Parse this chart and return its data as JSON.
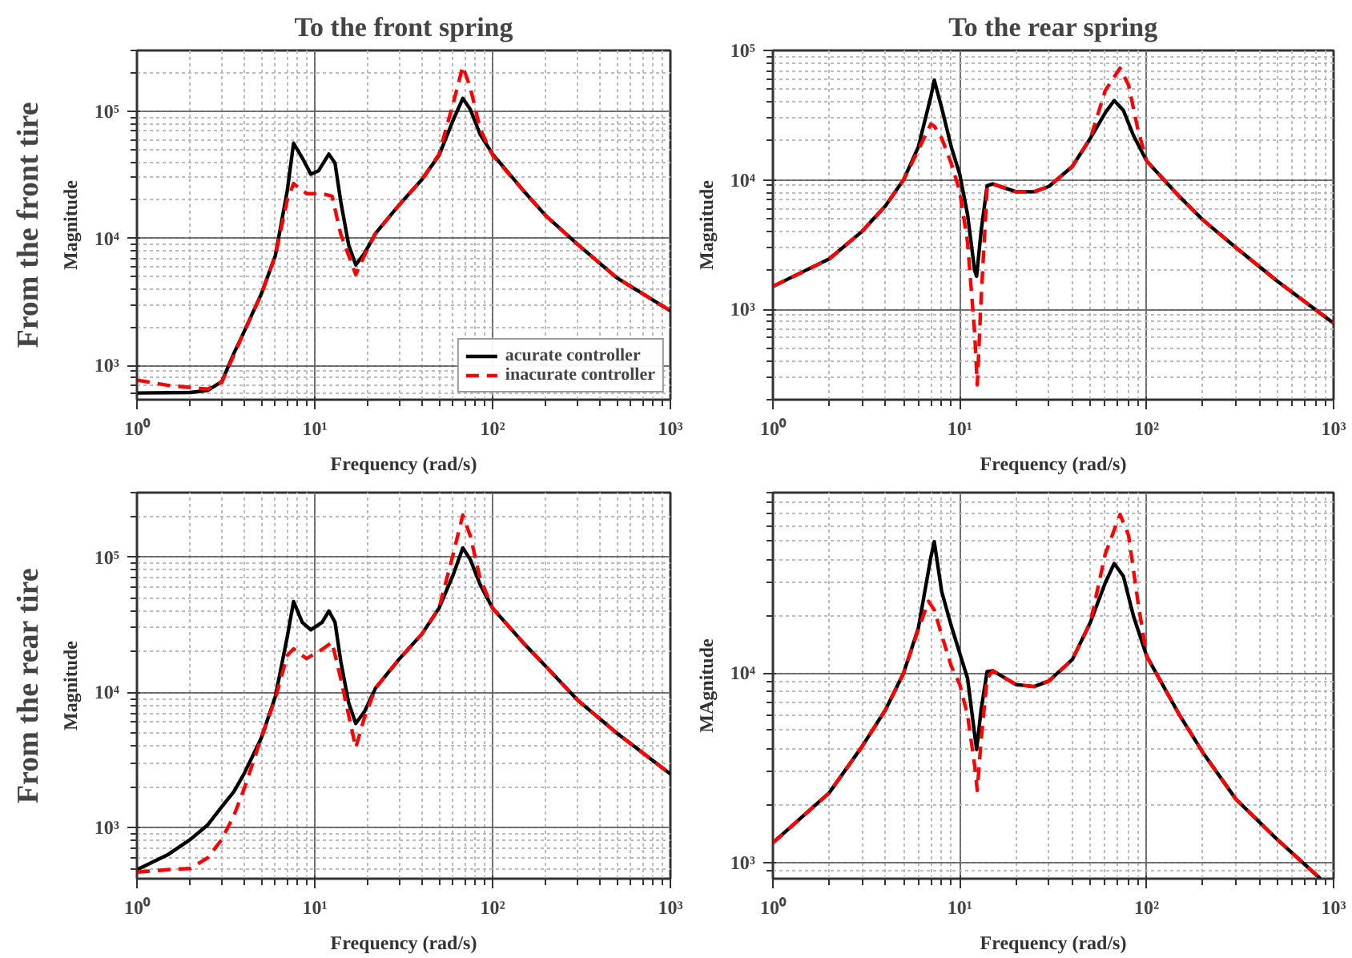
{
  "chart_data": [
    {
      "type": "line",
      "title": "To the front spring",
      "ylabel": "Magnitude",
      "xlabel": "Frequency (rad/s)",
      "annotations": [
        "From the front tire"
      ],
      "log": "xy",
      "grid": true,
      "legend": "bottom right",
      "xlim": [
        1,
        1000
      ],
      "ylim": [
        540,
        300000
      ],
      "xticks": [
        {
          "value": 1,
          "label": "10⁰"
        },
        {
          "value": 10,
          "label": "10¹"
        },
        {
          "value": 100,
          "label": "10²"
        },
        {
          "value": 1000,
          "label": "10³"
        }
      ],
      "yticks": [
        {
          "value": 1000,
          "label": "10³"
        },
        {
          "value": 10000,
          "label": "10⁴"
        },
        {
          "value": 100000,
          "label": "10⁵"
        }
      ],
      "series": [
        {
          "name": "acurate controller",
          "color": "#000000",
          "line_style": "solid",
          "x": [
            1,
            2,
            2.5,
            3,
            3.5,
            4,
            5,
            6,
            7,
            7.6,
            8.5,
            9.5,
            10.5,
            12,
            13,
            14,
            15.5,
            17,
            19,
            22,
            30,
            40,
            50,
            60,
            68,
            75,
            85,
            100,
            150,
            200,
            300,
            500,
            1000
          ],
          "values": [
            610,
            615,
            640,
            750,
            1240,
            1840,
            3650,
            7300,
            23600,
            56000,
            43000,
            32000,
            34000,
            46000,
            39000,
            19500,
            8900,
            6200,
            7600,
            11000,
            18500,
            29000,
            45000,
            85000,
            126000,
            103000,
            66000,
            46000,
            23500,
            15000,
            9000,
            4900,
            2700
          ]
        },
        {
          "name": "inacurate controller",
          "color": "#ff0000",
          "line_style": "dashed",
          "x": [
            1,
            1.5,
            2.5,
            3,
            3.5,
            4,
            5,
            6,
            7,
            7.6,
            9,
            11,
            12.5,
            14,
            17,
            19,
            22,
            30,
            40,
            50,
            60,
            68,
            75,
            85,
            100,
            150,
            200,
            300,
            500,
            1000
          ],
          "values": [
            770,
            700,
            655,
            740,
            1200,
            1840,
            3650,
            7300,
            20000,
            27000,
            22500,
            22500,
            21500,
            10800,
            5200,
            7300,
            11000,
            18500,
            29000,
            46000,
            115000,
            225000,
            152000,
            73000,
            45000,
            23500,
            15000,
            9000,
            4900,
            2700
          ]
        }
      ]
    },
    {
      "type": "line",
      "title": "To the rear spring",
      "ylabel": "Magnitude",
      "xlabel": "Frequency (rad/s)",
      "log": "xy",
      "grid": true,
      "xlim": [
        1,
        1000
      ],
      "ylim": [
        200,
        100000
      ],
      "xticks": [
        {
          "value": 1,
          "label": "10⁰"
        },
        {
          "value": 10,
          "label": "10¹"
        },
        {
          "value": 100,
          "label": "10²"
        },
        {
          "value": 1000,
          "label": "10³"
        }
      ],
      "yticks": [
        {
          "value": 1000,
          "label": "10³"
        },
        {
          "value": 10000,
          "label": "10⁴"
        },
        {
          "value": 100000,
          "label": "10⁵"
        }
      ],
      "series": [
        {
          "color": "#000000",
          "line_style": "solid",
          "x": [
            1,
            2,
            3,
            4,
            5,
            6,
            7,
            7.3,
            8,
            9,
            10,
            11,
            12,
            12.3,
            13,
            14,
            15,
            20,
            25,
            30,
            40,
            50,
            60,
            67,
            75,
            85,
            100,
            150,
            200,
            300,
            500,
            1000
          ],
          "values": [
            1500,
            2450,
            4000,
            6300,
            10000,
            18000,
            44000,
            59000,
            36000,
            18000,
            11000,
            5400,
            2000,
            1800,
            4000,
            9000,
            9300,
            8100,
            8100,
            8900,
            12700,
            21000,
            33000,
            41000,
            34500,
            22000,
            14000,
            7400,
            4900,
            3000,
            1650,
            780
          ]
        },
        {
          "color": "#ff0000",
          "line_style": "dashed",
          "x": [
            1,
            2,
            3,
            4,
            5,
            6,
            7,
            7.3,
            8,
            9,
            10,
            11,
            12,
            12.4,
            13,
            14,
            15,
            20,
            25,
            30,
            40,
            50,
            60,
            72,
            80,
            90,
            100,
            150,
            200,
            300,
            500,
            1000
          ],
          "values": [
            1500,
            2450,
            4000,
            6300,
            10000,
            17000,
            27000,
            26000,
            21000,
            13400,
            8100,
            3300,
            670,
            260,
            1200,
            8700,
            9300,
            8100,
            8100,
            8900,
            12700,
            21000,
            49000,
            73000,
            54000,
            24000,
            14000,
            7400,
            4900,
            3000,
            1650,
            780
          ]
        }
      ]
    },
    {
      "type": "line",
      "ylabel": "Magnitude",
      "xlabel": "Frequency (rad/s)",
      "annotations": [
        "From the rear tire"
      ],
      "log": "xy",
      "grid": true,
      "xlim": [
        1,
        1000
      ],
      "ylim": [
        420,
        300000
      ],
      "xticks": [
        {
          "value": 1,
          "label": "10⁰"
        },
        {
          "value": 10,
          "label": "10¹"
        },
        {
          "value": 100,
          "label": "10²"
        },
        {
          "value": 1000,
          "label": "10³"
        }
      ],
      "yticks": [
        {
          "value": 1000,
          "label": "10³"
        },
        {
          "value": 10000,
          "label": "10⁴"
        },
        {
          "value": 100000,
          "label": "10⁵"
        }
      ],
      "series": [
        {
          "color": "#000000",
          "line_style": "solid",
          "x": [
            1,
            1.5,
            2,
            2.5,
            3,
            3.5,
            4,
            5,
            6,
            7,
            7.6,
            8.5,
            9.5,
            11,
            12,
            13,
            14,
            15.5,
            17,
            19,
            22,
            30,
            40,
            50,
            60,
            68,
            75,
            85,
            100,
            150,
            200,
            300,
            500,
            1000
          ],
          "values": [
            490,
            635,
            820,
            1050,
            1430,
            1840,
            2500,
            4600,
            9300,
            25700,
            47000,
            33000,
            29000,
            33000,
            40000,
            33000,
            17000,
            8400,
            5900,
            7200,
            10800,
            17800,
            27000,
            42000,
            74000,
            117000,
            96000,
            63000,
            42000,
            23000,
            15500,
            8800,
            5000,
            2500
          ]
        },
        {
          "color": "#ff0000",
          "line_style": "dashed",
          "x": [
            1,
            1.5,
            2,
            2.5,
            3,
            3.5,
            4,
            5,
            6,
            7,
            7.6,
            9,
            11,
            12.5,
            14,
            17,
            19,
            22,
            30,
            40,
            50,
            60,
            68,
            75,
            85,
            100,
            150,
            200,
            300,
            500,
            1000
          ],
          "values": [
            470,
            490,
            500,
            600,
            820,
            1220,
            1930,
            4600,
            9000,
            18800,
            21000,
            17800,
            20800,
            23500,
            12600,
            3900,
            6500,
            10800,
            17800,
            27000,
            42000,
            105000,
            205000,
            143000,
            70000,
            42000,
            23000,
            15500,
            8800,
            5000,
            2500
          ]
        }
      ]
    },
    {
      "type": "line",
      "ylabel": "MAgnitude",
      "xlabel": "Frequency (rad/s)",
      "log": "xy",
      "grid": true,
      "xlim": [
        1,
        1000
      ],
      "ylim": [
        820,
        90000
      ],
      "xticks": [
        {
          "value": 1,
          "label": "10⁰"
        },
        {
          "value": 10,
          "label": "10¹"
        },
        {
          "value": 100,
          "label": "10²"
        },
        {
          "value": 1000,
          "label": "10³"
        }
      ],
      "yticks": [
        {
          "value": 1000,
          "label": "10³"
        },
        {
          "value": 10000,
          "label": "10⁴"
        }
      ],
      "series": [
        {
          "color": "#000000",
          "line_style": "solid",
          "x": [
            1,
            2,
            3,
            4,
            5,
            6,
            7,
            7.3,
            8,
            9,
            10,
            11,
            12,
            12.3,
            13,
            14,
            15,
            20,
            25,
            30,
            40,
            50,
            60,
            67,
            75,
            85,
            100,
            150,
            200,
            300,
            500,
            850
          ],
          "values": [
            1270,
            2330,
            4100,
            6400,
            10000,
            17300,
            41000,
            49500,
            27000,
            17800,
            12700,
            9400,
            4760,
            3950,
            6400,
            10200,
            10300,
            8700,
            8500,
            9100,
            11800,
            18600,
            30000,
            38000,
            32600,
            20000,
            12300,
            6000,
            3800,
            2160,
            1320,
            820
          ]
        },
        {
          "color": "#ff0000",
          "line_style": "dashed",
          "x": [
            1,
            2,
            3,
            4,
            5,
            6,
            6.8,
            7.3,
            8,
            9,
            10,
            11,
            12,
            12.4,
            13,
            14,
            15,
            20,
            25,
            30,
            40,
            50,
            60,
            72,
            80,
            90,
            100,
            150,
            200,
            300,
            500,
            850
          ],
          "values": [
            1270,
            2330,
            4100,
            6400,
            10000,
            17000,
            24000,
            21600,
            15900,
            10900,
            8700,
            6000,
            3270,
            2400,
            4400,
            9400,
            10300,
            8700,
            8500,
            9100,
            11800,
            18600,
            42600,
            69000,
            53500,
            23400,
            12300,
            6000,
            3800,
            2160,
            1320,
            820
          ]
        }
      ]
    }
  ]
}
